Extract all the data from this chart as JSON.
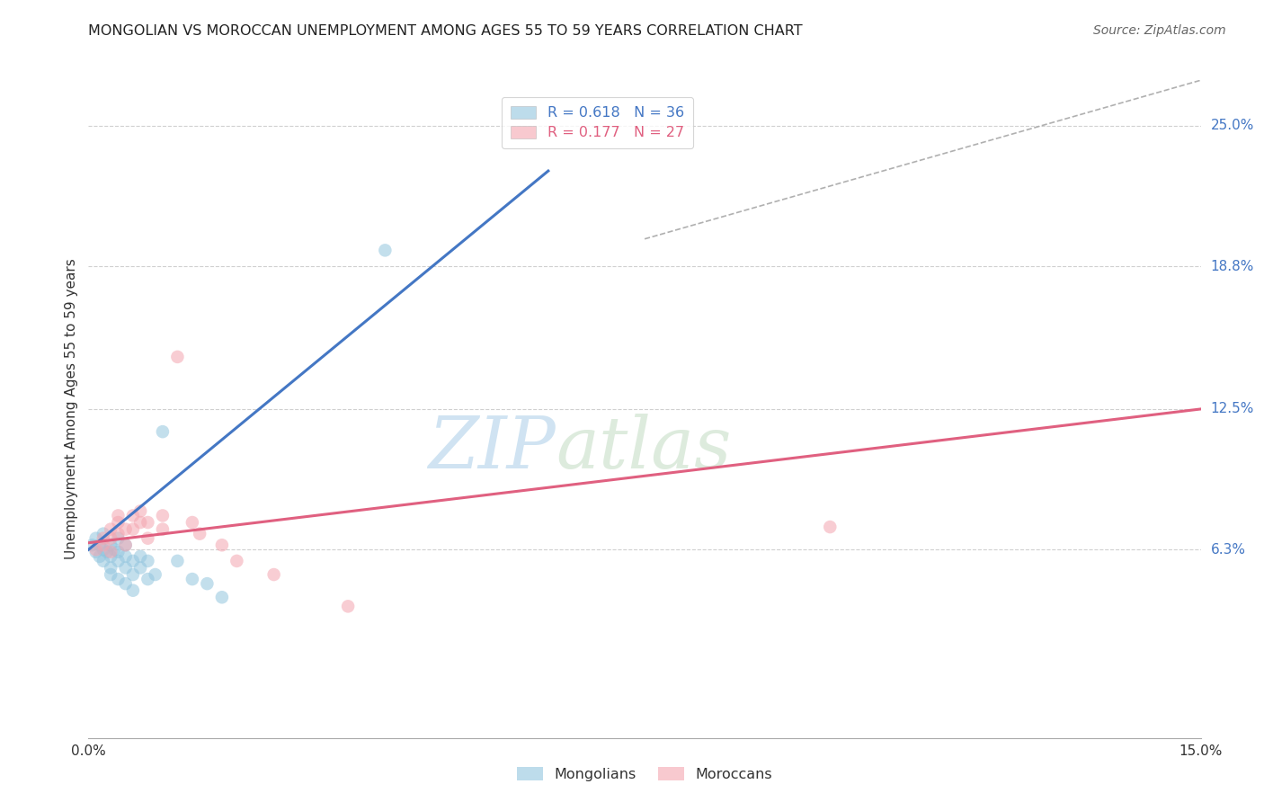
{
  "title": "MONGOLIAN VS MOROCCAN UNEMPLOYMENT AMONG AGES 55 TO 59 YEARS CORRELATION CHART",
  "source": "Source: ZipAtlas.com",
  "ylabel": "Unemployment Among Ages 55 to 59 years",
  "xlim": [
    0.0,
    0.15
  ],
  "ylim": [
    -0.02,
    0.27
  ],
  "ytick_labels": [
    "6.3%",
    "12.5%",
    "18.8%",
    "25.0%"
  ],
  "ytick_values": [
    0.063,
    0.125,
    0.188,
    0.25
  ],
  "xtick_labels": [
    "0.0%",
    "15.0%"
  ],
  "xtick_values": [
    0.0,
    0.15
  ],
  "mongolian_color": "#92c5de",
  "moroccan_color": "#f4a5b0",
  "mongolian_scatter": [
    [
      0.0005,
      0.065
    ],
    [
      0.001,
      0.068
    ],
    [
      0.001,
      0.062
    ],
    [
      0.0015,
      0.065
    ],
    [
      0.0015,
      0.06
    ],
    [
      0.002,
      0.063
    ],
    [
      0.002,
      0.058
    ],
    [
      0.002,
      0.07
    ],
    [
      0.0025,
      0.062
    ],
    [
      0.003,
      0.065
    ],
    [
      0.003,
      0.06
    ],
    [
      0.003,
      0.055
    ],
    [
      0.003,
      0.052
    ],
    [
      0.0035,
      0.063
    ],
    [
      0.004,
      0.068
    ],
    [
      0.004,
      0.062
    ],
    [
      0.004,
      0.058
    ],
    [
      0.004,
      0.05
    ],
    [
      0.005,
      0.065
    ],
    [
      0.005,
      0.06
    ],
    [
      0.005,
      0.055
    ],
    [
      0.005,
      0.048
    ],
    [
      0.006,
      0.058
    ],
    [
      0.006,
      0.052
    ],
    [
      0.006,
      0.045
    ],
    [
      0.007,
      0.06
    ],
    [
      0.007,
      0.055
    ],
    [
      0.008,
      0.058
    ],
    [
      0.008,
      0.05
    ],
    [
      0.009,
      0.052
    ],
    [
      0.01,
      0.115
    ],
    [
      0.012,
      0.058
    ],
    [
      0.014,
      0.05
    ],
    [
      0.016,
      0.048
    ],
    [
      0.018,
      0.042
    ],
    [
      0.04,
      0.195
    ]
  ],
  "moroccan_scatter": [
    [
      0.001,
      0.063
    ],
    [
      0.002,
      0.068
    ],
    [
      0.002,
      0.065
    ],
    [
      0.003,
      0.072
    ],
    [
      0.003,
      0.068
    ],
    [
      0.003,
      0.062
    ],
    [
      0.004,
      0.075
    ],
    [
      0.004,
      0.07
    ],
    [
      0.004,
      0.078
    ],
    [
      0.005,
      0.072
    ],
    [
      0.005,
      0.065
    ],
    [
      0.006,
      0.078
    ],
    [
      0.006,
      0.072
    ],
    [
      0.007,
      0.08
    ],
    [
      0.007,
      0.075
    ],
    [
      0.008,
      0.075
    ],
    [
      0.008,
      0.068
    ],
    [
      0.01,
      0.078
    ],
    [
      0.01,
      0.072
    ],
    [
      0.012,
      0.148
    ],
    [
      0.014,
      0.075
    ],
    [
      0.015,
      0.07
    ],
    [
      0.018,
      0.065
    ],
    [
      0.02,
      0.058
    ],
    [
      0.025,
      0.052
    ],
    [
      0.035,
      0.038
    ],
    [
      0.1,
      0.073
    ]
  ],
  "mongolian_line_x": [
    0.0,
    0.062
  ],
  "mongolian_line_y": [
    0.063,
    0.23
  ],
  "moroccan_line_x": [
    0.0,
    0.15
  ],
  "moroccan_line_y": [
    0.066,
    0.125
  ],
  "diag_line_x": [
    0.075,
    0.15
  ],
  "diag_line_y": [
    0.2,
    0.27
  ],
  "watermark_zip": "ZIP",
  "watermark_atlas": "atlas",
  "background_color": "#ffffff",
  "grid_color": "#d0d0d0",
  "legend_top": [
    {
      "label_r": "R = 0.618",
      "label_n": "N = 36",
      "color": "#92c5de"
    },
    {
      "label_r": "R = 0.177",
      "label_n": "N = 27",
      "color": "#f4a5b0"
    }
  ],
  "legend_bottom": [
    {
      "label": "Mongolians",
      "color": "#92c5de"
    },
    {
      "label": "Moroccans",
      "color": "#f4a5b0"
    }
  ]
}
